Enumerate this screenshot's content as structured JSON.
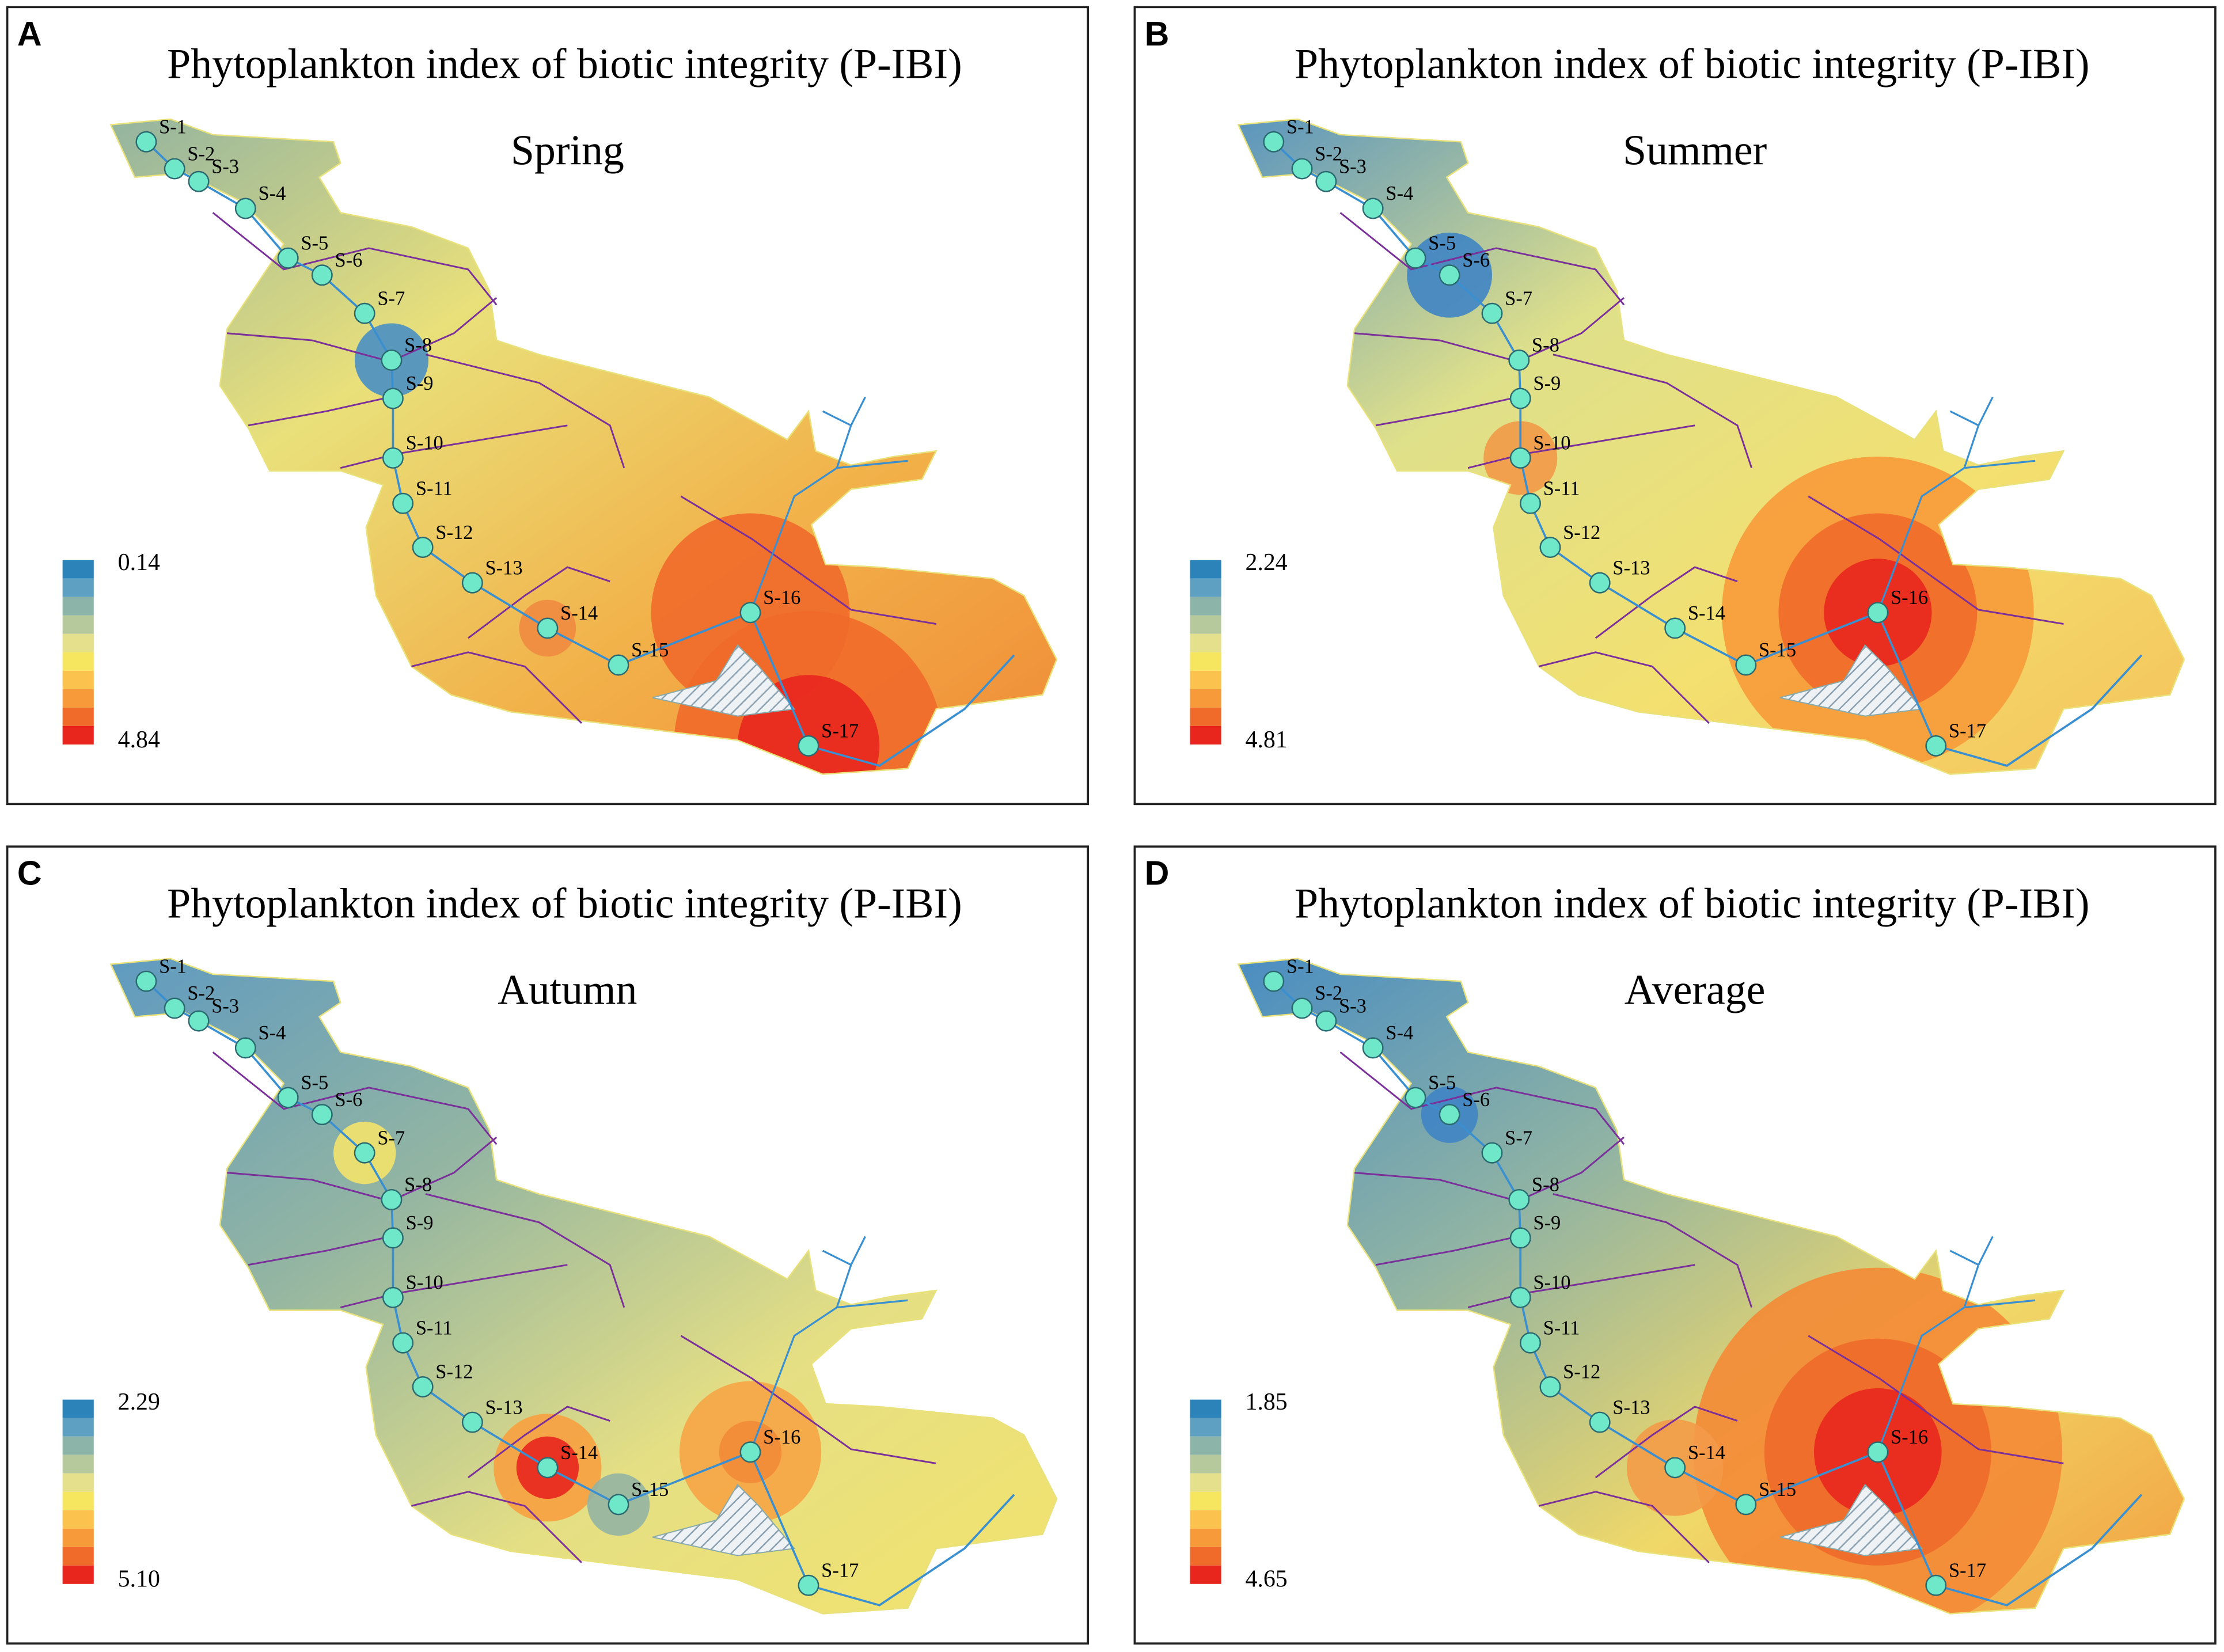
{
  "panels": [
    {
      "letter": "A",
      "title": "Phytoplankton index of biotic integrity (P-IBI)",
      "season": "Spring",
      "legend": {
        "top": "0.14",
        "bottom": "4.84"
      }
    },
    {
      "letter": "B",
      "title": "Phytoplankton index of biotic integrity (P-IBI)",
      "season": "Summer",
      "legend": {
        "top": "2.24",
        "bottom": "4.81"
      }
    },
    {
      "letter": "C",
      "title": "Phytoplankton index of biotic integrity (P-IBI)",
      "season": "Autumn",
      "legend": {
        "top": "2.29",
        "bottom": "5.10"
      }
    },
    {
      "letter": "D",
      "title": "Phytoplankton index of biotic integrity (P-IBI)",
      "season": "Average",
      "legend": {
        "top": "1.85",
        "bottom": "4.65"
      }
    }
  ],
  "stations": [
    "S-1",
    "S-2",
    "S-3",
    "S-4",
    "S-5",
    "S-6",
    "S-7",
    "S-8",
    "S-9",
    "S-10",
    "S-11",
    "S-12",
    "S-13",
    "S-14",
    "S-15",
    "S-16",
    "S-17"
  ]
}
